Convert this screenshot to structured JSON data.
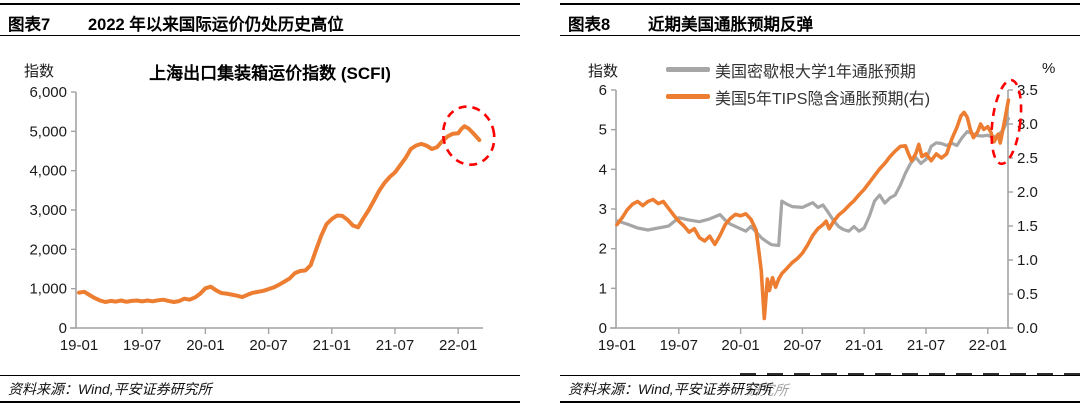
{
  "panels": [
    {
      "header": {
        "label": "图表7",
        "title": "2022 年以来国际运价仍处历史高位"
      },
      "source": "资料来源：Wind,平安证券研究所"
    },
    {
      "header": {
        "label": "图表8",
        "title": "近期美国通胀预期反弹"
      },
      "source": "资料来源：Wind,平安证券研究所",
      "artifact": {
        "ghost_text": "研究所"
      }
    }
  ],
  "chart_data": [
    {
      "type": "line",
      "title": "上海出口集装箱运价指数 (SCFI)",
      "x_axis": {
        "unit": "months since 2019-01",
        "tick_months": [
          0,
          6,
          12,
          18,
          24,
          30,
          36
        ],
        "tick_labels": [
          "19-01",
          "19-07",
          "20-01",
          "20-07",
          "21-01",
          "21-07",
          "22-01"
        ]
      },
      "y_axis_left": {
        "unit": "指数",
        "min": 0,
        "max": 6000,
        "tick_values": [
          0,
          1000,
          2000,
          3000,
          4000,
          5000,
          6000
        ],
        "tick_labels": [
          "0",
          "1,000",
          "2,000",
          "3,000",
          "4,000",
          "5,000",
          "6,000"
        ]
      },
      "grid": false,
      "legend": "none",
      "series": [
        {
          "id": "scfi-line",
          "name": "上海出口集装箱运价指数(SCFI)",
          "color": "#ED7D31",
          "width": 4,
          "axis": "left",
          "points": [
            [
              0,
              900
            ],
            [
              0.5,
              920
            ],
            [
              1,
              840
            ],
            [
              1.5,
              760
            ],
            [
              2,
              700
            ],
            [
              2.5,
              660
            ],
            [
              3,
              690
            ],
            [
              3.5,
              670
            ],
            [
              4,
              700
            ],
            [
              4.5,
              665
            ],
            [
              5,
              690
            ],
            [
              5.5,
              700
            ],
            [
              6,
              675
            ],
            [
              6.5,
              700
            ],
            [
              7,
              680
            ],
            [
              7.5,
              705
            ],
            [
              8,
              720
            ],
            [
              8.5,
              690
            ],
            [
              9,
              660
            ],
            [
              9.5,
              685
            ],
            [
              10,
              745
            ],
            [
              10.5,
              720
            ],
            [
              11,
              775
            ],
            [
              11.5,
              870
            ],
            [
              12,
              1010
            ],
            [
              12.5,
              1050
            ],
            [
              13,
              960
            ],
            [
              13.5,
              890
            ],
            [
              14,
              875
            ],
            [
              14.5,
              850
            ],
            [
              15,
              820
            ],
            [
              15.5,
              785
            ],
            [
              16,
              845
            ],
            [
              16.5,
              895
            ],
            [
              17,
              920
            ],
            [
              17.5,
              945
            ],
            [
              18,
              990
            ],
            [
              18.5,
              1035
            ],
            [
              19,
              1100
            ],
            [
              19.5,
              1180
            ],
            [
              20,
              1260
            ],
            [
              20.5,
              1395
            ],
            [
              21,
              1450
            ],
            [
              21.5,
              1465
            ],
            [
              22,
              1600
            ],
            [
              22.5,
              1980
            ],
            [
              23,
              2350
            ],
            [
              23.5,
              2640
            ],
            [
              24,
              2770
            ],
            [
              24.5,
              2860
            ],
            [
              25,
              2850
            ],
            [
              25.5,
              2750
            ],
            [
              26,
              2605
            ],
            [
              26.5,
              2560
            ],
            [
              27,
              2790
            ],
            [
              27.5,
              3000
            ],
            [
              28,
              3240
            ],
            [
              28.5,
              3490
            ],
            [
              29,
              3690
            ],
            [
              29.5,
              3840
            ],
            [
              30,
              3955
            ],
            [
              30.5,
              4140
            ],
            [
              31,
              4320
            ],
            [
              31.5,
              4550
            ],
            [
              32,
              4640
            ],
            [
              32.5,
              4680
            ],
            [
              33,
              4635
            ],
            [
              33.5,
              4550
            ],
            [
              34,
              4600
            ],
            [
              34.5,
              4755
            ],
            [
              35,
              4870
            ],
            [
              35.5,
              4940
            ],
            [
              36,
              4950
            ],
            [
              36.3,
              5060
            ],
            [
              36.6,
              5130
            ],
            [
              37,
              5070
            ],
            [
              37.4,
              4960
            ],
            [
              37.7,
              4870
            ],
            [
              38,
              4780
            ]
          ]
        }
      ],
      "annotations": [
        {
          "type": "dashed_ellipse",
          "color": "#FF0000",
          "axis": "left",
          "center_month": 37.0,
          "center_value": 4890,
          "rx_months": 2.4,
          "ry_value": 745,
          "rotate_deg": -15,
          "note": "2022年初高位运价圈注"
        }
      ]
    },
    {
      "type": "line",
      "x_axis": {
        "unit": "months since 2019-01",
        "tick_months": [
          0,
          6,
          12,
          18,
          24,
          30,
          36
        ],
        "tick_labels": [
          "19-01",
          "19-07",
          "20-01",
          "20-07",
          "21-01",
          "21-07",
          "22-01"
        ]
      },
      "y_axis_left": {
        "unit": "指数",
        "min": 0,
        "max": 6,
        "tick_values": [
          0,
          1,
          2,
          3,
          4,
          5,
          6
        ],
        "tick_labels": [
          "0",
          "1",
          "2",
          "3",
          "4",
          "5",
          "6"
        ]
      },
      "y_axis_right": {
        "unit": "%",
        "min": 0,
        "max": 3.5,
        "tick_values": [
          0,
          0.5,
          1,
          1.5,
          2,
          2.5,
          3,
          3.5
        ],
        "tick_labels": [
          "0.0",
          "0.5",
          "1.0",
          "1.5",
          "2.0",
          "2.5",
          "3.0",
          "3.5"
        ]
      },
      "grid": false,
      "legend": "top",
      "series": [
        {
          "id": "michigan-line",
          "name": "美国密歇根大学1年通胀预期",
          "color": "#A6A6A6",
          "width": 3.2,
          "axis": "left",
          "points": [
            [
              0,
              2.7
            ],
            [
              1,
              2.62
            ],
            [
              2,
              2.52
            ],
            [
              3,
              2.47
            ],
            [
              4,
              2.52
            ],
            [
              5,
              2.57
            ],
            [
              6,
              2.78
            ],
            [
              7,
              2.72
            ],
            [
              8,
              2.68
            ],
            [
              9,
              2.75
            ],
            [
              10,
              2.86
            ],
            [
              10.5,
              2.72
            ],
            [
              11,
              2.62
            ],
            [
              12,
              2.5
            ],
            [
              12.5,
              2.44
            ],
            [
              13,
              2.56
            ],
            [
              13.5,
              2.42
            ],
            [
              14,
              2.28
            ],
            [
              14.5,
              2.18
            ],
            [
              15,
              2.1
            ],
            [
              15.7,
              2.08
            ],
            [
              16,
              3.2
            ],
            [
              16.5,
              3.12
            ],
            [
              17,
              3.06
            ],
            [
              18,
              3.04
            ],
            [
              18.5,
              3.1
            ],
            [
              19,
              3.16
            ],
            [
              19.5,
              3.04
            ],
            [
              20,
              3.1
            ],
            [
              20.5,
              2.92
            ],
            [
              21,
              2.72
            ],
            [
              21.5,
              2.56
            ],
            [
              22,
              2.48
            ],
            [
              22.5,
              2.44
            ],
            [
              23,
              2.56
            ],
            [
              23.5,
              2.44
            ],
            [
              24,
              2.52
            ],
            [
              24.5,
              2.82
            ],
            [
              25,
              3.2
            ],
            [
              25.5,
              3.35
            ],
            [
              26,
              3.15
            ],
            [
              26.5,
              3.28
            ],
            [
              27,
              3.35
            ],
            [
              27.5,
              3.6
            ],
            [
              28,
              3.9
            ],
            [
              28.5,
              4.15
            ],
            [
              29,
              4.3
            ],
            [
              29.5,
              4.15
            ],
            [
              30,
              4.25
            ],
            [
              30.5,
              4.58
            ],
            [
              31,
              4.67
            ],
            [
              31.5,
              4.65
            ],
            [
              32,
              4.6
            ],
            [
              32.5,
              4.66
            ],
            [
              33,
              4.6
            ],
            [
              33.5,
              4.8
            ],
            [
              34,
              4.95
            ],
            [
              34.5,
              4.9
            ],
            [
              35,
              4.85
            ],
            [
              35.5,
              4.84
            ],
            [
              36,
              4.86
            ],
            [
              36.5,
              4.8
            ],
            [
              37,
              4.86
            ],
            [
              37.5,
              5.0
            ],
            [
              38,
              5.28
            ]
          ]
        },
        {
          "id": "tips-line",
          "name": "美国5年TIPS隐含通胀预期(右)",
          "color": "#ED7D31",
          "width": 3.6,
          "axis": "right",
          "points": [
            [
              0,
              1.52
            ],
            [
              0.5,
              1.62
            ],
            [
              1,
              1.74
            ],
            [
              1.5,
              1.82
            ],
            [
              2,
              1.86
            ],
            [
              2.5,
              1.8
            ],
            [
              3,
              1.86
            ],
            [
              3.5,
              1.89
            ],
            [
              4,
              1.83
            ],
            [
              4.5,
              1.86
            ],
            [
              5,
              1.76
            ],
            [
              5.5,
              1.66
            ],
            [
              6,
              1.57
            ],
            [
              6.5,
              1.5
            ],
            [
              7,
              1.41
            ],
            [
              7.5,
              1.46
            ],
            [
              8,
              1.33
            ],
            [
              8.5,
              1.28
            ],
            [
              9,
              1.35
            ],
            [
              9.5,
              1.23
            ],
            [
              10,
              1.36
            ],
            [
              10.5,
              1.52
            ],
            [
              11,
              1.61
            ],
            [
              11.5,
              1.67
            ],
            [
              12,
              1.65
            ],
            [
              12.5,
              1.68
            ],
            [
              13,
              1.6
            ],
            [
              13.5,
              1.44
            ],
            [
              13.8,
              1.1
            ],
            [
              14,
              0.85
            ],
            [
              14.3,
              0.14
            ],
            [
              14.6,
              0.72
            ],
            [
              14.8,
              0.55
            ],
            [
              15.1,
              0.74
            ],
            [
              15.4,
              0.6
            ],
            [
              15.7,
              0.72
            ],
            [
              16,
              0.8
            ],
            [
              16.5,
              0.88
            ],
            [
              17,
              0.96
            ],
            [
              17.5,
              1.02
            ],
            [
              18,
              1.1
            ],
            [
              18.5,
              1.22
            ],
            [
              19,
              1.36
            ],
            [
              19.5,
              1.46
            ],
            [
              20,
              1.52
            ],
            [
              20.3,
              1.57
            ],
            [
              20.6,
              1.46
            ],
            [
              21,
              1.56
            ],
            [
              21.5,
              1.66
            ],
            [
              22,
              1.72
            ],
            [
              22.5,
              1.8
            ],
            [
              23,
              1.87
            ],
            [
              23.5,
              1.96
            ],
            [
              24,
              2.04
            ],
            [
              24.5,
              2.14
            ],
            [
              25,
              2.24
            ],
            [
              25.5,
              2.34
            ],
            [
              26,
              2.42
            ],
            [
              26.5,
              2.52
            ],
            [
              27,
              2.6
            ],
            [
              27.5,
              2.67
            ],
            [
              28,
              2.68
            ],
            [
              28.3,
              2.56
            ],
            [
              28.6,
              2.46
            ],
            [
              29,
              2.56
            ],
            [
              29.3,
              2.7
            ],
            [
              29.6,
              2.52
            ],
            [
              30,
              2.56
            ],
            [
              30.5,
              2.46
            ],
            [
              31,
              2.56
            ],
            [
              31.5,
              2.5
            ],
            [
              32,
              2.56
            ],
            [
              32.5,
              2.78
            ],
            [
              33,
              2.95
            ],
            [
              33.4,
              3.12
            ],
            [
              33.7,
              3.17
            ],
            [
              34,
              3.1
            ],
            [
              34.3,
              2.92
            ],
            [
              34.6,
              2.8
            ],
            [
              35,
              2.88
            ],
            [
              35.3,
              3.0
            ],
            [
              35.6,
              2.92
            ],
            [
              36,
              2.96
            ],
            [
              36.3,
              2.88
            ],
            [
              36.6,
              2.74
            ],
            [
              37,
              2.85
            ],
            [
              37.2,
              2.72
            ],
            [
              37.5,
              2.95
            ],
            [
              37.7,
              3.1
            ],
            [
              38,
              3.35
            ]
          ]
        }
      ],
      "annotations": [
        {
          "type": "dashed_ellipse",
          "color": "#FF0000",
          "axis": "right",
          "center_month": 37.8,
          "center_value": 3.03,
          "rx_months": 1.35,
          "ry_value": 0.62,
          "rotate_deg": 7,
          "note": "近期通胀预期反弹圈注"
        }
      ]
    }
  ]
}
